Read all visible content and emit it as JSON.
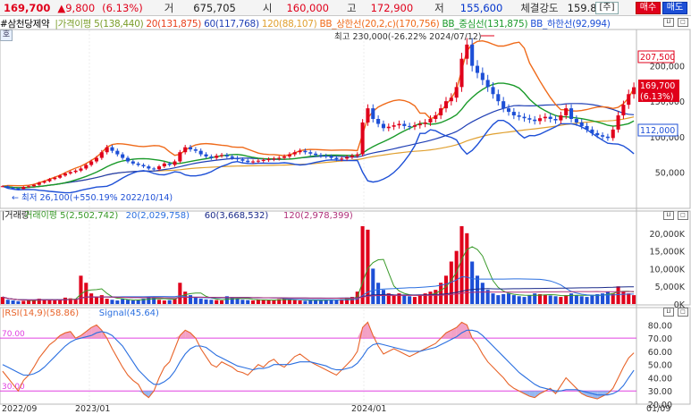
{
  "quote": {
    "name": "#삼천당제약",
    "price": "169,700",
    "change": "▲9,800",
    "change_pct": "(6.13%)",
    "volume_label": "거",
    "volume": "675,705",
    "open_label": "시",
    "open": "160,000",
    "high_label": "고",
    "high": "172,900",
    "low_label": "저",
    "low": "155,600",
    "strength_label": "체결강도",
    "strength": "159.81",
    "btn_star": "[주]",
    "btn_buy": "매수",
    "btn_sell": "매도",
    "hover_label": "호"
  },
  "price_legend": [
    {
      "text": "가격이평 5(138,440)",
      "color": "#7a9d2a"
    },
    {
      "text": "20(131,875)",
      "color": "#e8401c"
    },
    {
      "text": "60(117,768)",
      "color": "#1f3fb5"
    },
    {
      "text": "120(88,107)",
      "color": "#e0a030"
    },
    {
      "text": "BB_상한선(20,2,c)(170,756)",
      "color": "#ef6a1a"
    },
    {
      "text": "BB_중심선(131,875)",
      "color": "#1a9a2a"
    },
    {
      "text": "BB_하한선(92,994)",
      "color": "#1d4fd6"
    }
  ],
  "annotations": {
    "high": "최고 230,000(-26.22% 2024/07/12)",
    "low": "최저 26,100(+550.19% 2022/10/14)"
  },
  "price_axis": {
    "ticks": [
      "200,000",
      "150,000",
      "100,000",
      "50,000"
    ],
    "boxes": {
      "bb_upper": "207,500",
      "price": "169,700",
      "price_pct": "(6.13%)",
      "ma": "112,000"
    }
  },
  "volume_legend": [
    {
      "text": "거래량",
      "color": "#222"
    },
    {
      "text": "거래이평 5(2,502,742)",
      "color": "#3a9a2a"
    },
    {
      "text": "20(2,029,758)",
      "color": "#2a6fe0"
    },
    {
      "text": "60(3,668,532)",
      "color": "#1a2a8a"
    },
    {
      "text": "120(2,978,399)",
      "color": "#b0307a"
    }
  ],
  "volume_axis": {
    "ticks": [
      "20,000K",
      "15,000K",
      "10,000K",
      "5,000K",
      "0K"
    ]
  },
  "rsi_legend": [
    {
      "text": "RSI(14,9)(58.86)",
      "color": "#e8642a"
    },
    {
      "text": "Signal(45.64)",
      "color": "#2a6fe0"
    }
  ],
  "rsi_axis": {
    "ticks": [
      "80.00",
      "70.00",
      "60.00",
      "50.00",
      "40.00",
      "30.00",
      "20.00"
    ],
    "upper": "70.00",
    "lower": "30.00"
  },
  "x_axis": {
    "labels": [
      "2022/09",
      "2023/01",
      "2024/01",
      "01/09"
    ]
  },
  "chart_data": {
    "type": "candlestick",
    "ylim": [
      0,
      250000
    ],
    "price_close": [
      30000,
      28000,
      27000,
      26100,
      29000,
      30000,
      32000,
      35000,
      37000,
      40000,
      42000,
      45000,
      48000,
      50000,
      52000,
      55000,
      60000,
      65000,
      70000,
      78000,
      85000,
      80000,
      75000,
      70000,
      65000,
      62000,
      60000,
      58000,
      55000,
      54000,
      58000,
      62000,
      60000,
      65000,
      78000,
      85000,
      82000,
      80000,
      75000,
      72000,
      70000,
      73000,
      74000,
      72000,
      70000,
      68000,
      66000,
      64000,
      65000,
      66000,
      67000,
      68000,
      69000,
      70000,
      72000,
      75000,
      78000,
      80000,
      78000,
      76000,
      74000,
      73000,
      72000,
      70000,
      68000,
      69000,
      71000,
      73000,
      75000,
      120000,
      140000,
      125000,
      118000,
      112000,
      114000,
      116000,
      118000,
      115000,
      114000,
      116000,
      118000,
      120000,
      125000,
      130000,
      140000,
      150000,
      155000,
      170000,
      210000,
      230000,
      200000,
      190000,
      180000,
      170000,
      160000,
      150000,
      140000,
      135000,
      130000,
      128000,
      126000,
      124000,
      122000,
      126000,
      128000,
      125000,
      123000,
      130000,
      140000,
      125000,
      120000,
      115000,
      110000,
      105000,
      102000,
      100000,
      98000,
      110000,
      130000,
      145000,
      160000,
      169700
    ],
    "volume_k": [
      2000,
      1200,
      1000,
      800,
      900,
      1100,
      1200,
      1500,
      1300,
      1100,
      1000,
      1200,
      1800,
      1600,
      1400,
      8000,
      6000,
      3000,
      2000,
      2500,
      1500,
      1200,
      1000,
      1400,
      1200,
      1000,
      1100,
      1500,
      2000,
      1800,
      1200,
      1000,
      1100,
      1500,
      6000,
      3500,
      2500,
      2000,
      1500,
      1300,
      1200,
      1100,
      1000,
      2200,
      1800,
      1500,
      1200,
      1100,
      1000,
      1300,
      1200,
      1100,
      1000,
      1400,
      1500,
      1200,
      1100,
      1000,
      900,
      1100,
      1200,
      1000,
      1100,
      1300,
      1200,
      1400,
      1800,
      2000,
      3500,
      22000,
      21000,
      10000,
      6000,
      4000,
      3000,
      2500,
      3000,
      2500,
      2200,
      2000,
      2500,
      3000,
      3500,
      4000,
      6000,
      8000,
      12000,
      15000,
      22000,
      20000,
      12000,
      8000,
      6000,
      4000,
      3000,
      2500,
      2800,
      3000,
      2500,
      2200,
      2000,
      2500,
      3000,
      2800,
      2600,
      2400,
      2200,
      2000,
      2500,
      3000,
      2500,
      2200,
      2000,
      2500,
      2800,
      3000,
      3500,
      3000,
      5000,
      3500,
      3000,
      2500
    ],
    "rsi": [
      45,
      40,
      35,
      30,
      38,
      42,
      48,
      55,
      60,
      65,
      68,
      72,
      74,
      75,
      70,
      72,
      75,
      78,
      80,
      76,
      70,
      62,
      55,
      48,
      42,
      38,
      35,
      28,
      25,
      30,
      40,
      48,
      52,
      62,
      72,
      76,
      74,
      70,
      62,
      56,
      50,
      48,
      52,
      50,
      48,
      45,
      44,
      42,
      46,
      50,
      48,
      52,
      54,
      50,
      48,
      52,
      56,
      58,
      55,
      52,
      50,
      48,
      46,
      44,
      42,
      46,
      50,
      54,
      60,
      78,
      82,
      72,
      64,
      58,
      60,
      62,
      60,
      58,
      56,
      58,
      60,
      62,
      64,
      66,
      70,
      74,
      76,
      78,
      82,
      80,
      70,
      65,
      58,
      52,
      48,
      44,
      40,
      35,
      32,
      30,
      28,
      26,
      25,
      28,
      30,
      32,
      28,
      34,
      40,
      36,
      32,
      28,
      26,
      25,
      24,
      26,
      28,
      32,
      40,
      48,
      55,
      58.86
    ],
    "signal": [
      50,
      48,
      46,
      44,
      42,
      42,
      43,
      45,
      48,
      52,
      56,
      60,
      64,
      67,
      69,
      70,
      71,
      72,
      74,
      75,
      74,
      72,
      68,
      64,
      58,
      52,
      46,
      42,
      38,
      35,
      35,
      37,
      40,
      45,
      52,
      58,
      62,
      64,
      64,
      63,
      60,
      57,
      55,
      53,
      51,
      49,
      48,
      47,
      46,
      47,
      47,
      48,
      50,
      50,
      50,
      50,
      51,
      52,
      52,
      52,
      51,
      50,
      49,
      47,
      46,
      46,
      47,
      48,
      51,
      56,
      62,
      65,
      66,
      65,
      64,
      63,
      62,
      61,
      60,
      60,
      60,
      61,
      62,
      63,
      65,
      67,
      69,
      71,
      74,
      76,
      76,
      75,
      72,
      68,
      64,
      60,
      56,
      52,
      48,
      44,
      41,
      38,
      35,
      33,
      32,
      31,
      30,
      30,
      31,
      31,
      31,
      30,
      29,
      28,
      27,
      27,
      27,
      28,
      30,
      34,
      40,
      45.64
    ],
    "rsi_range": [
      20,
      85
    ]
  }
}
